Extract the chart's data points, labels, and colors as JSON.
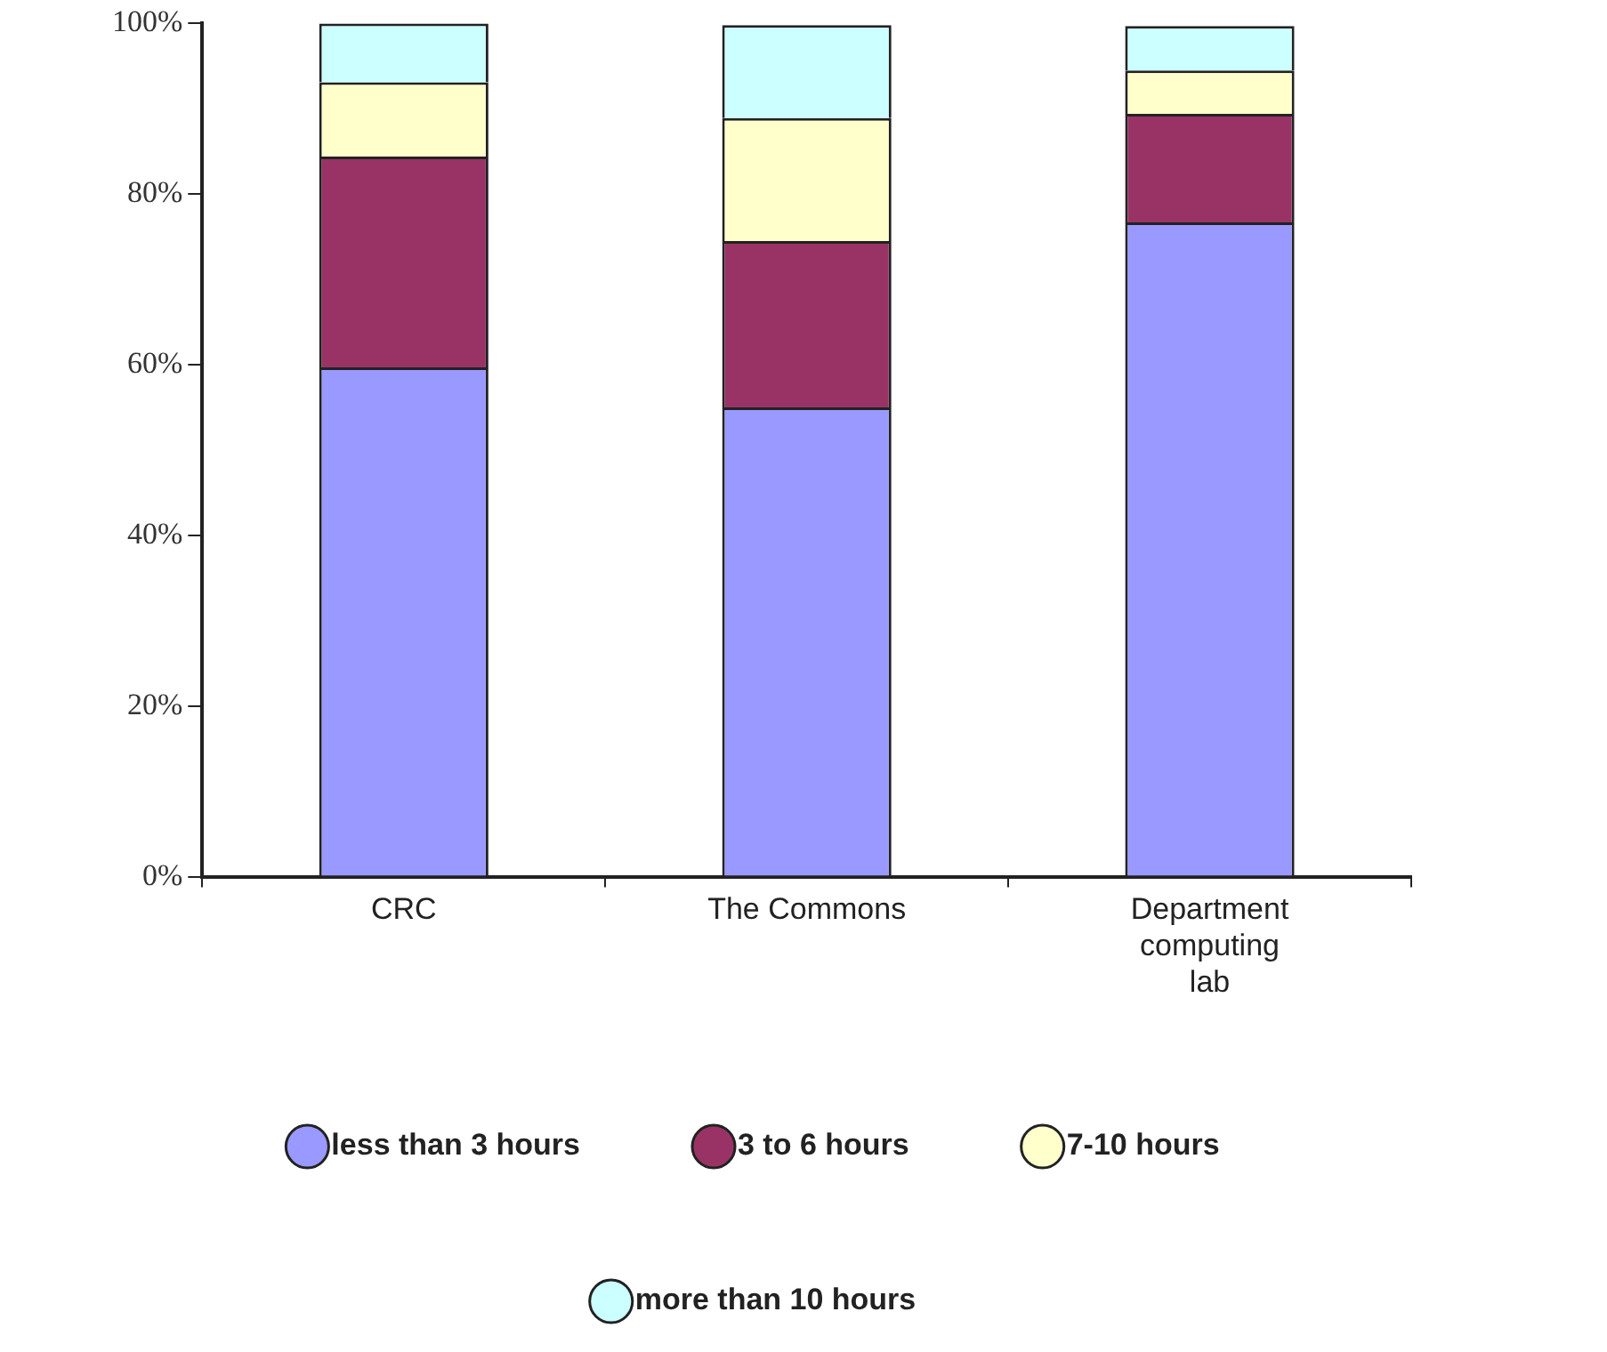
{
  "chart_data": {
    "type": "bar",
    "stacked": true,
    "categories": [
      "CRC",
      "The Commons",
      "Department computing lab"
    ],
    "series": [
      {
        "name": "less than 3 hours",
        "color": "#9999ff",
        "values": [
          59.7,
          55,
          76.7
        ]
      },
      {
        "name": "3 to 6 hours",
        "color": "#993366",
        "values": [
          24.7,
          19.5,
          12.7
        ]
      },
      {
        "name": "7-10 hours",
        "color": "#ffffcc",
        "values": [
          8.7,
          14.4,
          5.1
        ]
      },
      {
        "name": "more than 10 hours",
        "color": "#ccffff",
        "values": [
          6.9,
          10.9,
          5.2
        ]
      }
    ],
    "ylim": [
      0,
      100
    ],
    "yticks": [
      {
        "value": 0,
        "label": "0%"
      },
      {
        "value": 20,
        "label": "20%"
      },
      {
        "value": 40,
        "label": "40%"
      },
      {
        "value": 60,
        "label": "60%"
      },
      {
        "value": 80,
        "label": "80%"
      },
      {
        "value": 100,
        "label": "100%"
      }
    ],
    "grid": false,
    "legend": "bottom"
  }
}
